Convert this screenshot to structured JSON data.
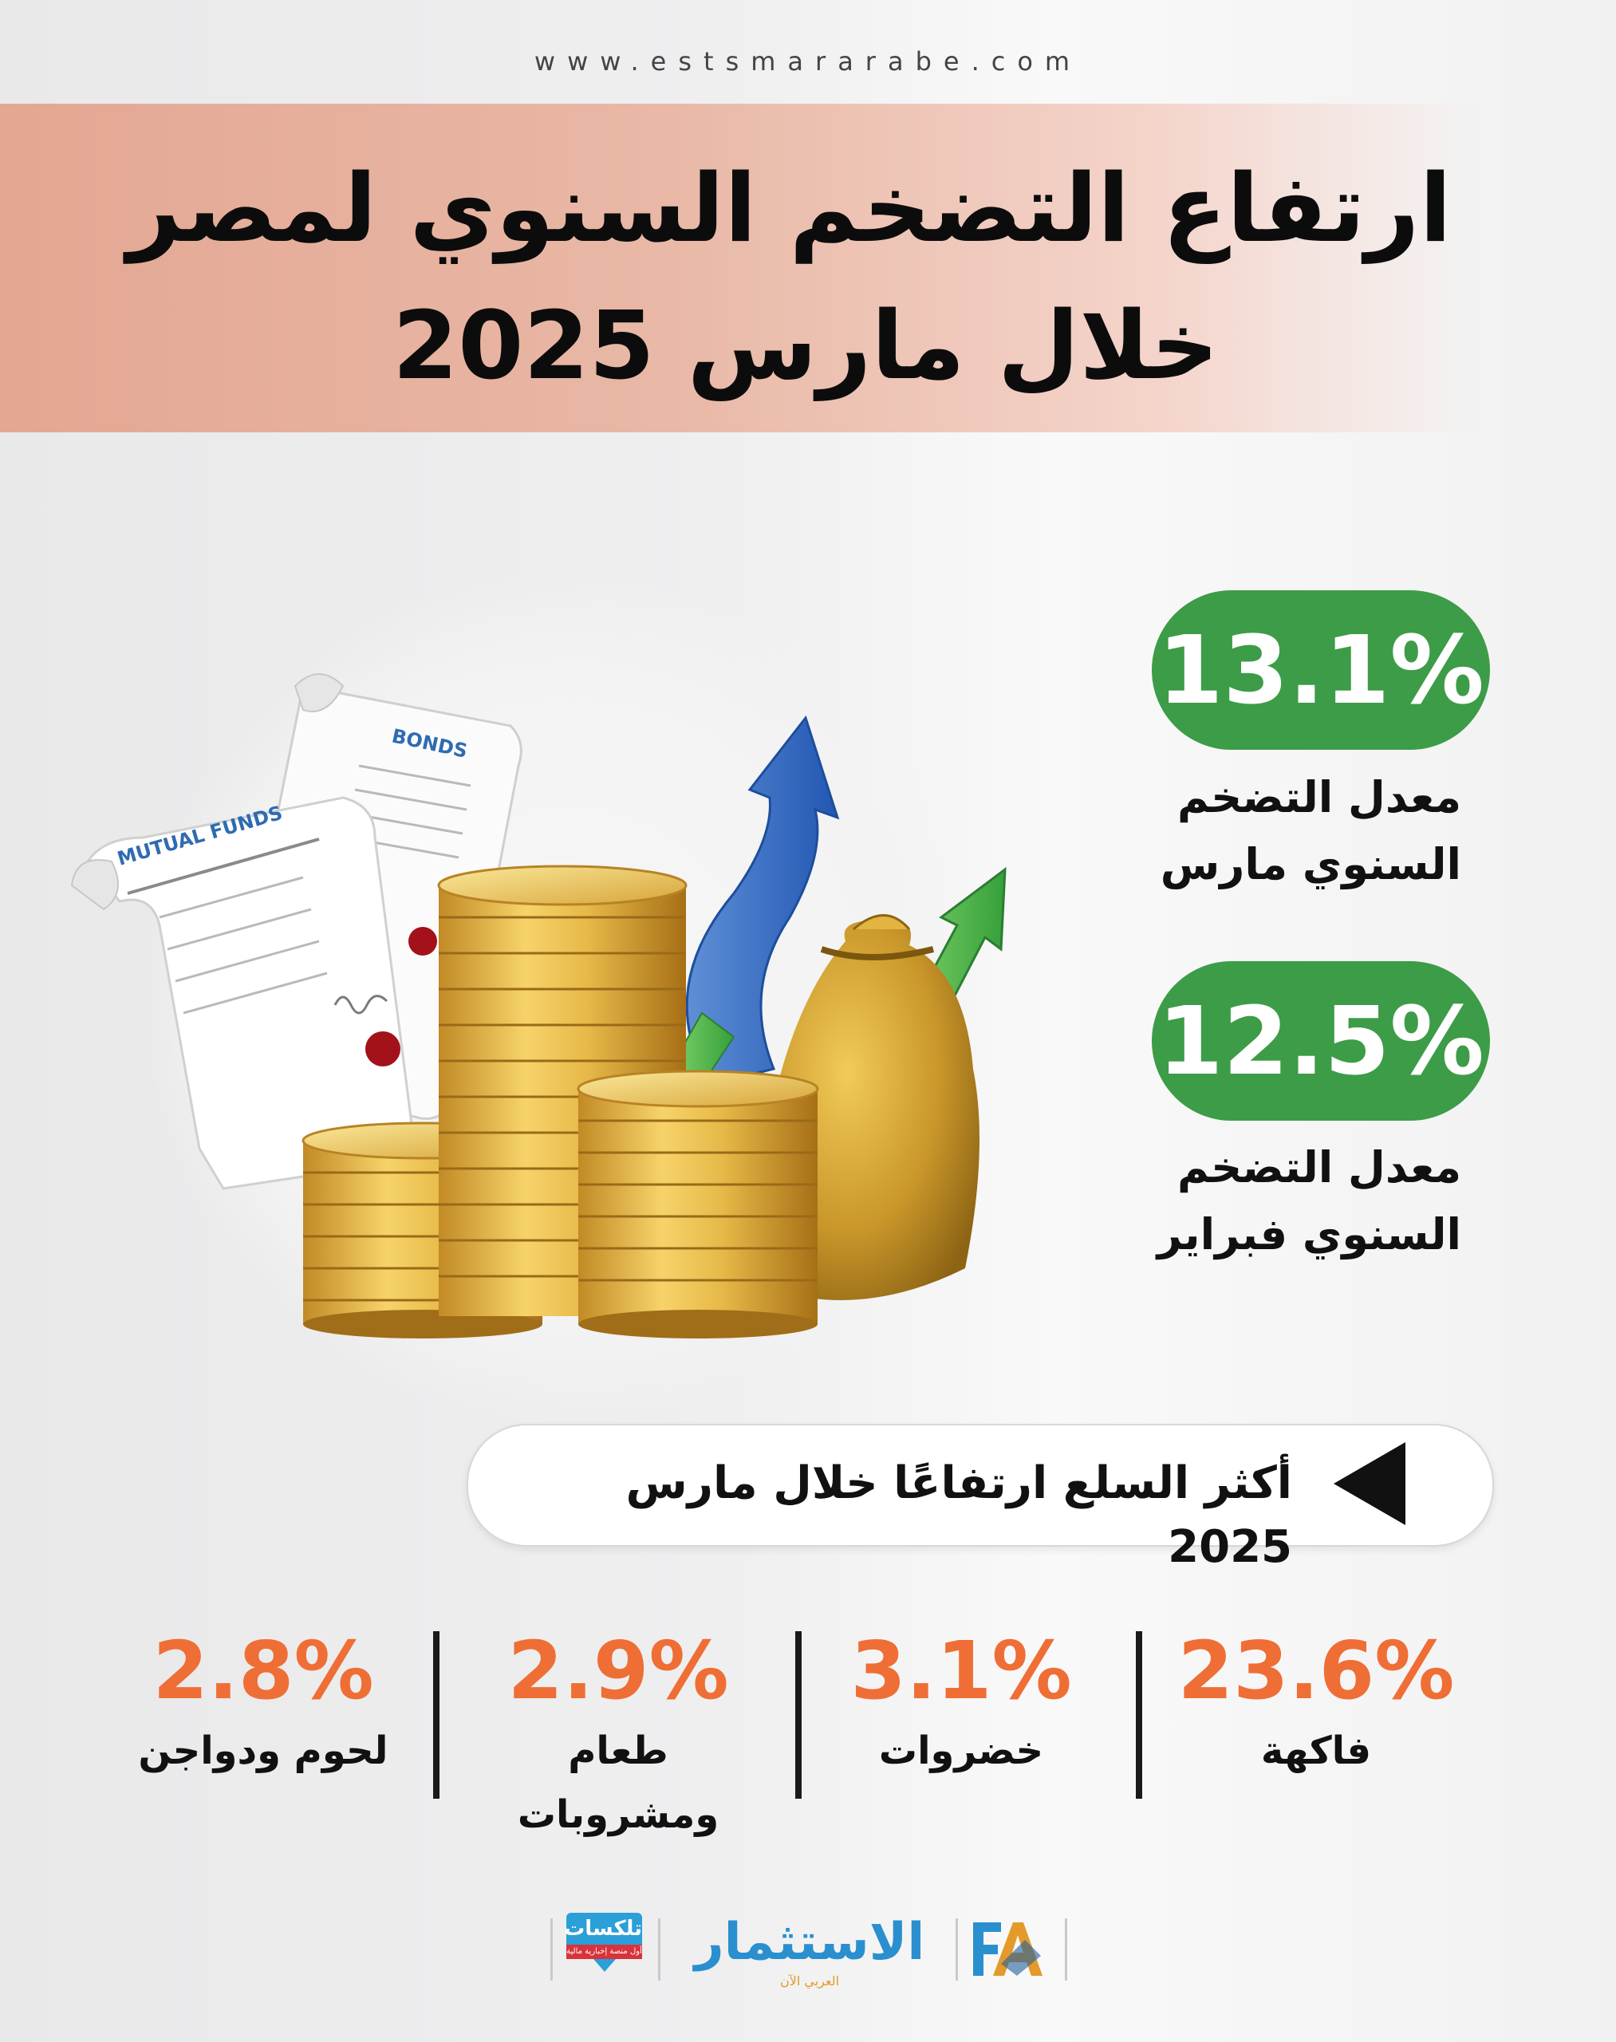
{
  "header": {
    "website": "www.estsmararabe.com"
  },
  "title": {
    "line1": "ارتفاع التضخم السنوي لمصر",
    "line2": "خلال مارس 2025"
  },
  "illustration": {
    "mutual_funds_label": "MUTUAL FUNDS",
    "bonds_label": "BONDS"
  },
  "stats": [
    {
      "value": "13.1%",
      "label_line1": "معدل التضخم",
      "label_line2": "السنوي مارس"
    },
    {
      "value": "12.5%",
      "label_line1": "معدل التضخم",
      "label_line2": "السنوي فبراير"
    }
  ],
  "commodities": {
    "section_title": "أكثر السلع ارتفاعًا خلال مارس 2025",
    "items": [
      {
        "value": "23.6%",
        "name": "فاكهة"
      },
      {
        "value": "3.1%",
        "name": "خضروات"
      },
      {
        "value": "2.9%",
        "name": "طعام ومشروبات"
      },
      {
        "value": "2.8%",
        "name": "لحوم ودواجن"
      }
    ]
  },
  "logos": {
    "telexat": "تلكسات",
    "telexat_tagline": "أول منصة إخبارية مالية",
    "estsmar": "الاستثمار",
    "estsmar_tagline": "العربي الآن"
  },
  "colors": {
    "banner": "#e3a793",
    "pill_green": "#3d9c47",
    "value_orange": "#ef6e35",
    "coin_gold": "#e0b84a"
  }
}
